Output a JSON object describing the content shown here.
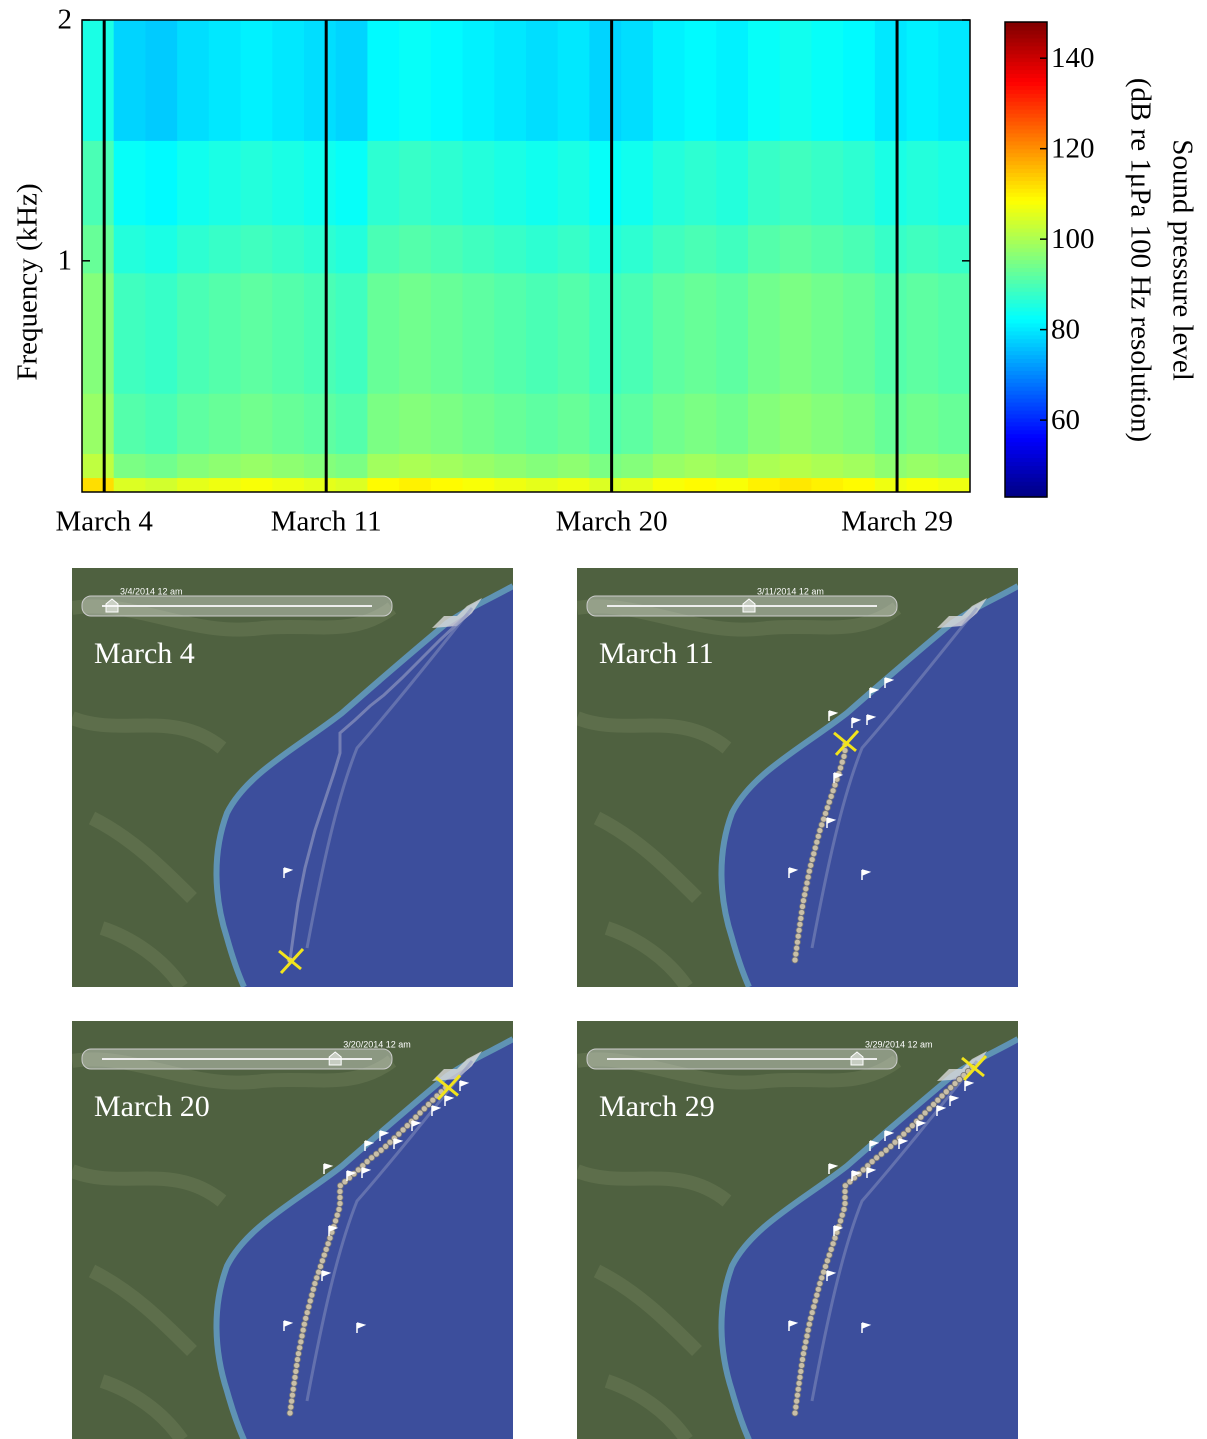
{
  "chart_data": {
    "type": "spectrogram",
    "ylabel": "Frequency (kHz)",
    "xlim": [
      3.3,
      31.3
    ],
    "xticks": [
      {
        "value": 4,
        "label": "March 4"
      },
      {
        "value": 11,
        "label": "March 11"
      },
      {
        "value": 20,
        "label": "March 20"
      },
      {
        "value": 29,
        "label": "March 29"
      }
    ],
    "ylim": [
      0.04,
      2
    ],
    "yticks": [
      1,
      2
    ],
    "colormap": "jet",
    "clim": [
      43,
      148
    ],
    "cticks": [
      60,
      80,
      100,
      120,
      140
    ],
    "colorbar_label": [
      "Sound pressure level",
      "(dB re 1μPa 100 Hz resolution)"
    ],
    "xbins": [
      3.3,
      4.3,
      5.3,
      6.3,
      7.3,
      8.3,
      9.3,
      10.3,
      11.3,
      12.3,
      13.3,
      14.3,
      15.3,
      16.3,
      17.3,
      18.3,
      19.3,
      20.3,
      21.3,
      22.3,
      23.3,
      24.3,
      25.3,
      26.3,
      27.3,
      28.3,
      29.3,
      30.3,
      31.3
    ],
    "ybins": [
      0.04,
      0.1,
      0.2,
      0.45,
      0.95,
      1.15,
      1.5,
      2
    ],
    "z": [
      [
        112,
        105,
        104,
        106,
        107,
        108,
        107,
        106,
        105,
        109,
        110,
        109,
        108,
        107,
        106,
        107,
        105,
        106,
        108,
        109,
        108,
        110,
        111,
        110,
        109,
        107,
        108,
        107
      ],
      [
        102,
        95,
        94,
        96,
        97,
        98,
        97,
        96,
        95,
        99,
        100,
        99,
        98,
        97,
        96,
        97,
        95,
        96,
        98,
        99,
        98,
        100,
        101,
        100,
        99,
        97,
        98,
        97
      ],
      [
        98,
        91,
        90,
        92,
        93,
        94,
        93,
        92,
        91,
        95,
        96,
        95,
        94,
        93,
        92,
        93,
        91,
        92,
        94,
        95,
        94,
        96,
        97,
        96,
        95,
        93,
        94,
        93
      ],
      [
        96,
        89,
        88,
        90,
        91,
        92,
        91,
        90,
        89,
        93,
        94,
        93,
        92,
        91,
        90,
        91,
        89,
        90,
        92,
        93,
        92,
        94,
        95,
        94,
        93,
        91,
        92,
        91
      ],
      [
        93,
        86,
        85,
        87,
        88,
        89,
        88,
        87,
        86,
        90,
        91,
        90,
        89,
        88,
        87,
        88,
        86,
        87,
        89,
        90,
        89,
        91,
        92,
        91,
        90,
        88,
        89,
        88
      ],
      [
        90,
        83,
        82,
        84,
        85,
        86,
        85,
        84,
        83,
        87,
        88,
        87,
        86,
        85,
        84,
        85,
        83,
        84,
        86,
        87,
        86,
        88,
        89,
        88,
        87,
        85,
        86,
        85
      ],
      [
        85,
        78,
        77,
        79,
        80,
        81,
        80,
        79,
        78,
        82,
        83,
        82,
        81,
        80,
        79,
        80,
        78,
        79,
        81,
        82,
        81,
        83,
        84,
        83,
        82,
        80,
        81,
        80
      ]
    ]
  },
  "maps": [
    {
      "label": "March 4",
      "timestamp": "3/4/2014  12 am"
    },
    {
      "label": "March 11",
      "timestamp": "3/11/2014  12 am"
    },
    {
      "label": "March 20",
      "timestamp": "3/20/2014  12 am"
    },
    {
      "label": "March 29",
      "timestamp": "3/29/2014  12 am"
    }
  ]
}
